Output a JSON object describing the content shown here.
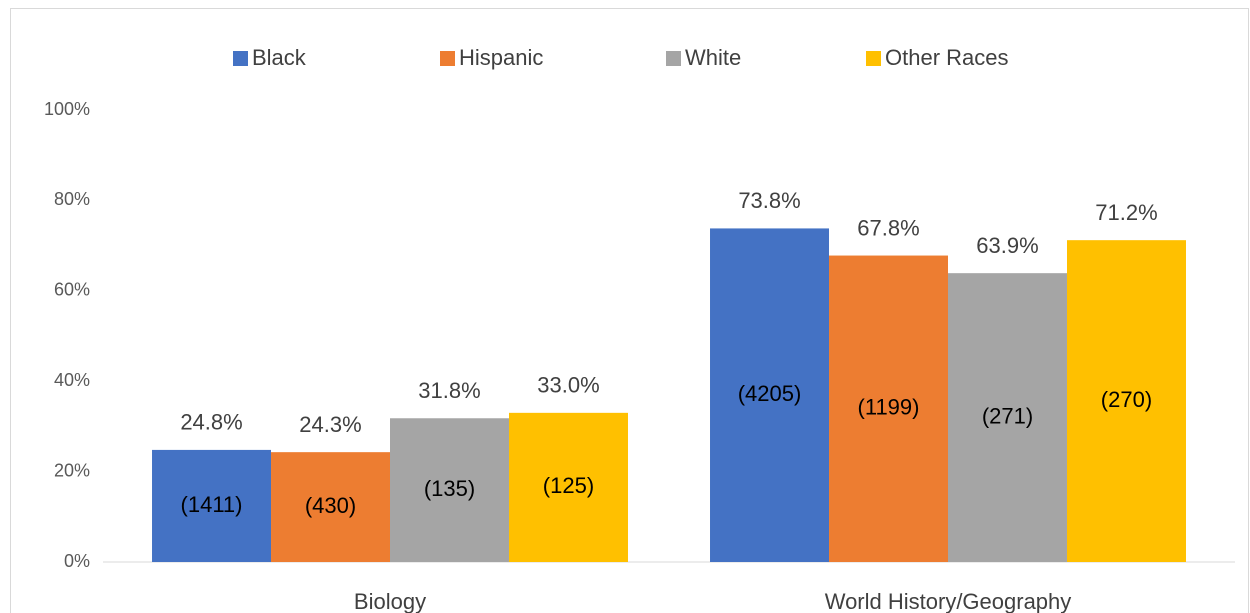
{
  "chart_data": {
    "type": "bar",
    "categories": [
      "Biology",
      "World History/Geography"
    ],
    "series": [
      {
        "name": "Black",
        "color": "#4472c4",
        "values": [
          24.8,
          73.8
        ],
        "value_labels": [
          "24.8%",
          "73.8%"
        ],
        "count_labels": [
          "(1411)",
          "(4205)"
        ]
      },
      {
        "name": "Hispanic",
        "color": "#ed7d31",
        "values": [
          24.3,
          67.8
        ],
        "value_labels": [
          "24.3%",
          "67.8%"
        ],
        "count_labels": [
          "(430)",
          "(1199)"
        ]
      },
      {
        "name": "White",
        "color": "#a5a5a5",
        "values": [
          31.8,
          63.9
        ],
        "value_labels": [
          "31.8%",
          "63.9%"
        ],
        "count_labels": [
          "(135)",
          "(271)"
        ]
      },
      {
        "name": "Other Races",
        "color": "#ffc000",
        "values": [
          33.0,
          71.2
        ],
        "value_labels": [
          "33.0%",
          "71.2%"
        ],
        "count_labels": [
          "(125)",
          "(270)"
        ]
      }
    ],
    "ylim": [
      0,
      100
    ],
    "yticks": [
      {
        "value": 0,
        "label": "0%"
      },
      {
        "value": 20,
        "label": "20%"
      },
      {
        "value": 40,
        "label": "40%"
      },
      {
        "value": 60,
        "label": "60%"
      },
      {
        "value": 80,
        "label": "80%"
      },
      {
        "value": 100,
        "label": "100%"
      }
    ],
    "grid": false,
    "legend": "top"
  }
}
